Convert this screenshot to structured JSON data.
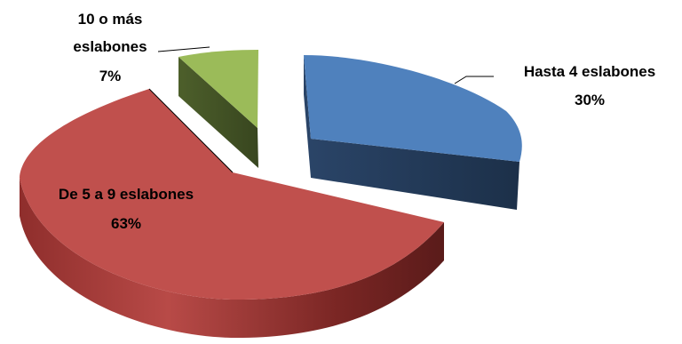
{
  "chart_data": {
    "type": "pie",
    "style": "3d-exploded",
    "slices": [
      {
        "label": "Hasta 4 eslabones",
        "percent_label": "30%",
        "value": 30,
        "color": "#4F81BD"
      },
      {
        "label": "De 5 a 9 eslabones",
        "percent_label": "63%",
        "value": 63,
        "color": "#C0504D"
      },
      {
        "label": "10 o más eslabones",
        "label_lines": [
          "10 o más",
          "eslabones"
        ],
        "percent_label": "7%",
        "value": 7,
        "color": "#9BBB59"
      }
    ],
    "legend": "none",
    "data_labels": "category and percent"
  }
}
